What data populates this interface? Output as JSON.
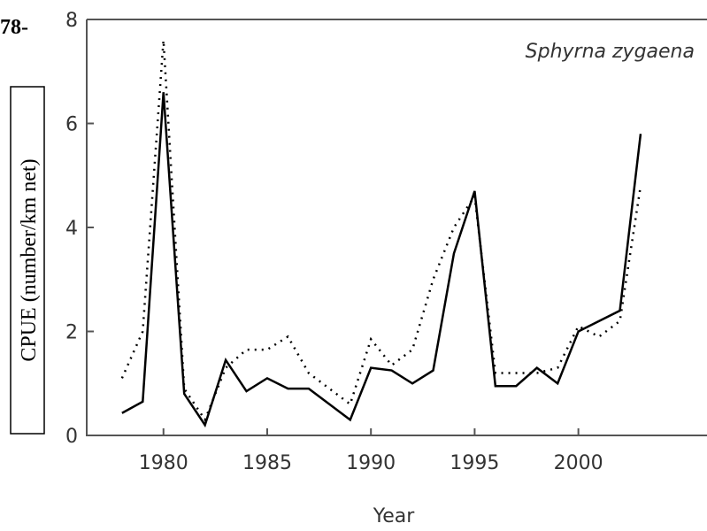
{
  "chart_data": {
    "type": "line",
    "corner_text": "78-",
    "annotation": "Sphyrna zygaena",
    "x_label": "Year",
    "y_label": "CPUE (number/km net)",
    "x": [
      1978,
      1979,
      1980,
      1981,
      1982,
      1983,
      1984,
      1985,
      1986,
      1987,
      1988,
      1989,
      1990,
      1991,
      1992,
      1993,
      1994,
      1995,
      1996,
      1997,
      1998,
      1999,
      2000,
      2001,
      2002,
      2003
    ],
    "series": [
      {
        "color": "#000000",
        "dash": false,
        "values": [
          0.43,
          0.65,
          6.6,
          0.8,
          0.2,
          1.45,
          0.85,
          1.1,
          0.9,
          0.9,
          0.6,
          0.3,
          1.3,
          1.25,
          1.0,
          1.25,
          3.5,
          4.7,
          0.95,
          0.95,
          1.3,
          1.0,
          2.0,
          2.2,
          2.4,
          5.8
        ]
      },
      {
        "color": "#000000",
        "dash": true,
        "values": [
          1.1,
          2.0,
          7.6,
          0.9,
          0.3,
          1.3,
          1.65,
          1.65,
          1.9,
          1.2,
          0.9,
          0.6,
          1.85,
          1.35,
          1.65,
          3.0,
          4.0,
          4.6,
          1.2,
          1.2,
          1.2,
          1.3,
          2.1,
          1.9,
          2.2,
          4.8
        ]
      }
    ],
    "xlim": [
      1976.3,
      2006.2
    ],
    "xticks": [
      1980,
      1985,
      1990,
      1995,
      2000
    ],
    "ylim": [
      0,
      8
    ],
    "yticks": [
      0,
      2,
      4,
      6,
      8
    ]
  }
}
